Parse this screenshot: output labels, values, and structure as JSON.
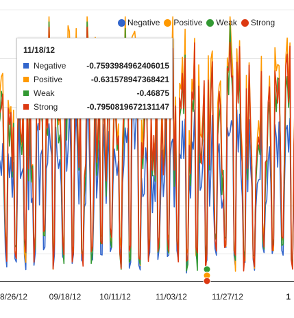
{
  "chart_data": {
    "type": "line",
    "x_tick_labels": [
      "8/26/12",
      "09/18/12",
      "10/11/12",
      "11/03/12",
      "11/27/12",
      "1"
    ],
    "series": [
      {
        "name": "Negative",
        "color": "#3366cc"
      },
      {
        "name": "Positive",
        "color": "#ff9900"
      },
      {
        "name": "Weak",
        "color": "#339933"
      },
      {
        "name": "Strong",
        "color": "#dc3912"
      }
    ],
    "grid": true,
    "legend_position": "top-right",
    "tooltip": {
      "date": "11/18/12",
      "rows": [
        {
          "name": "Negative",
          "value": "-0.7593984962406015",
          "color": "#3366cc"
        },
        {
          "name": "Positive",
          "value": "-0.631578947368421",
          "color": "#ff9900"
        },
        {
          "name": "Weak",
          "value": "-0.46875",
          "color": "#339933"
        },
        {
          "name": "Strong",
          "value": "-0.7950819672131147",
          "color": "#dc3912"
        }
      ]
    }
  }
}
